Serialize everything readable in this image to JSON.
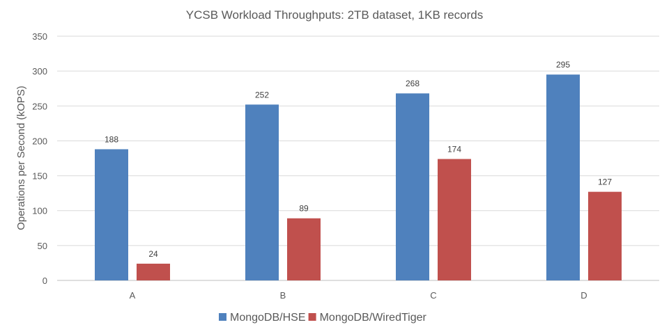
{
  "chart_data": {
    "type": "bar",
    "title": "YCSB Workload Throughputs: 2TB dataset, 1KB records",
    "xlabel": "",
    "ylabel": "Operations per Second (kOPS)",
    "categories": [
      "A",
      "B",
      "C",
      "D"
    ],
    "ylim": [
      0,
      350
    ],
    "yticks": [
      0,
      50,
      100,
      150,
      200,
      250,
      300,
      350
    ],
    "grid": true,
    "legend_position": "bottom",
    "series": [
      {
        "name": "MongoDB/HSE",
        "color": "#4f81bd",
        "values": [
          188,
          252,
          268,
          295
        ]
      },
      {
        "name": "MongoDB/WiredTiger",
        "color": "#c0504d",
        "values": [
          24,
          89,
          174,
          127
        ]
      }
    ]
  }
}
